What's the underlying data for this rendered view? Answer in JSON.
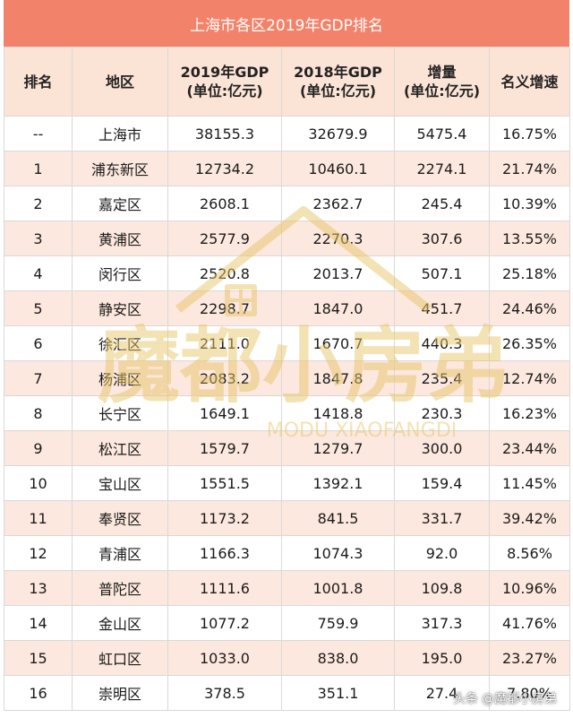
{
  "title": "上海市各区2019年GDP排名",
  "headers": {
    "rank": "排名",
    "region": "地区",
    "gdp2019_line1": "2019年GDP",
    "gdp2019_line2": "(单位:亿元)",
    "gdp2018_line1": "2018年GDP",
    "gdp2018_line2": "(单位:亿元)",
    "increase_line1": "增量",
    "increase_line2": "(单位:亿元)",
    "growth": "名义增速"
  },
  "rows": [
    {
      "rank": "--",
      "region": "上海市",
      "gdp2019": "38155.3",
      "gdp2018": "32679.9",
      "increase": "5475.4",
      "growth": "16.75%"
    },
    {
      "rank": "1",
      "region": "浦东新区",
      "gdp2019": "12734.2",
      "gdp2018": "10460.1",
      "increase": "2274.1",
      "growth": "21.74%"
    },
    {
      "rank": "2",
      "region": "嘉定区",
      "gdp2019": "2608.1",
      "gdp2018": "2362.7",
      "increase": "245.4",
      "growth": "10.39%"
    },
    {
      "rank": "3",
      "region": "黄浦区",
      "gdp2019": "2577.9",
      "gdp2018": "2270.3",
      "increase": "307.6",
      "growth": "13.55%"
    },
    {
      "rank": "4",
      "region": "闵行区",
      "gdp2019": "2520.8",
      "gdp2018": "2013.7",
      "increase": "507.1",
      "growth": "25.18%"
    },
    {
      "rank": "5",
      "region": "静安区",
      "gdp2019": "2298.7",
      "gdp2018": "1847.0",
      "increase": "451.7",
      "growth": "24.46%"
    },
    {
      "rank": "6",
      "region": "徐汇区",
      "gdp2019": "2111.0",
      "gdp2018": "1670.7",
      "increase": "440.3",
      "growth": "26.35%"
    },
    {
      "rank": "7",
      "region": "杨浦区",
      "gdp2019": "2083.2",
      "gdp2018": "1847.8",
      "increase": "235.4",
      "growth": "12.74%"
    },
    {
      "rank": "8",
      "region": "长宁区",
      "gdp2019": "1649.1",
      "gdp2018": "1418.8",
      "increase": "230.3",
      "growth": "16.23%"
    },
    {
      "rank": "9",
      "region": "松江区",
      "gdp2019": "1579.7",
      "gdp2018": "1279.7",
      "increase": "300.0",
      "growth": "23.44%"
    },
    {
      "rank": "10",
      "region": "宝山区",
      "gdp2019": "1551.5",
      "gdp2018": "1392.1",
      "increase": "159.4",
      "growth": "11.45%"
    },
    {
      "rank": "11",
      "region": "奉贤区",
      "gdp2019": "1173.2",
      "gdp2018": "841.5",
      "increase": "331.7",
      "growth": "39.42%"
    },
    {
      "rank": "12",
      "region": "青浦区",
      "gdp2019": "1166.3",
      "gdp2018": "1074.3",
      "increase": "92.0",
      "growth": "8.56%"
    },
    {
      "rank": "13",
      "region": "普陀区",
      "gdp2019": "1111.6",
      "gdp2018": "1001.8",
      "increase": "109.8",
      "growth": "10.96%"
    },
    {
      "rank": "14",
      "region": "金山区",
      "gdp2019": "1077.2",
      "gdp2018": "759.9",
      "increase": "317.3",
      "growth": "41.76%"
    },
    {
      "rank": "15",
      "region": "虹口区",
      "gdp2019": "1033.0",
      "gdp2018": "838.0",
      "increase": "195.0",
      "growth": "23.27%"
    },
    {
      "rank": "16",
      "region": "崇明区",
      "gdp2019": "378.5",
      "gdp2018": "351.1",
      "increase": "27.4",
      "growth": "7.80%"
    }
  ],
  "watermark": {
    "text_cn": "魔都小房弟",
    "text_en": "MODU XIAOFANGDI",
    "icon": "house-icon"
  },
  "credit": {
    "prefix": "头条",
    "handle": "@魔都小房弟"
  },
  "colors": {
    "title_bg": "#f2836a",
    "header_bg": "#fbe3d6",
    "row_alt_bg": "#fce8de",
    "watermark": "#e8c66a"
  }
}
